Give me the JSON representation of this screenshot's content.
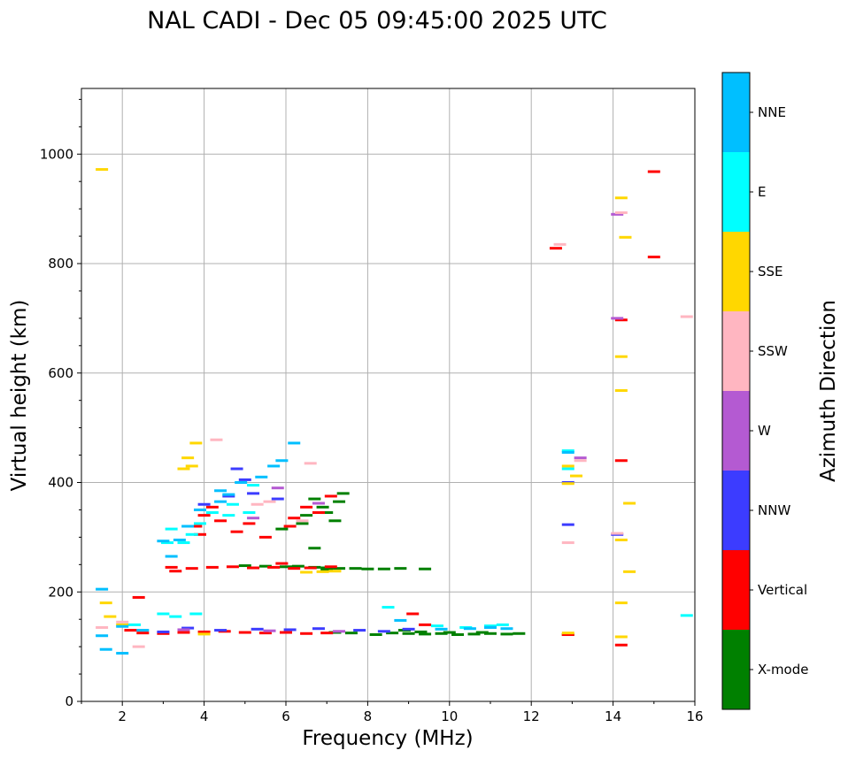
{
  "chart_data": {
    "type": "scatter",
    "title": "NAL CADI - Dec 05 09:45:00 2025 UTC",
    "xlabel": "Frequency (MHz)",
    "ylabel": "Virtual height (km)",
    "xlim": [
      1,
      16
    ],
    "ylim": [
      0,
      1120
    ],
    "xticks": [
      "2",
      "4",
      "6",
      "8",
      "10",
      "12",
      "14",
      "16"
    ],
    "yticks": [
      "0",
      "200",
      "400",
      "600",
      "800",
      "1000"
    ],
    "grid": true,
    "colorbar": {
      "title": "Azimuth Direction",
      "categories": [
        {
          "label": "X-mode",
          "color": "#008000"
        },
        {
          "label": "Vertical",
          "color": "#ff0000"
        },
        {
          "label": "NNW",
          "color": "#3c3cff"
        },
        {
          "label": "W",
          "color": "#b45ad2"
        },
        {
          "label": "SSW",
          "color": "#ffb6c1"
        },
        {
          "label": "SSE",
          "color": "#ffd700"
        },
        {
          "label": "E",
          "color": "#00ffff"
        },
        {
          "label": "NNE",
          "color": "#00bfff"
        }
      ]
    },
    "series": [
      {
        "name": "X-mode",
        "points": [
          [
            8.2,
            122
          ],
          [
            8.6,
            125
          ],
          [
            9.0,
            124
          ],
          [
            9.4,
            123
          ],
          [
            9.8,
            124
          ],
          [
            10.2,
            122
          ],
          [
            10.6,
            123
          ],
          [
            11.0,
            124
          ],
          [
            11.4,
            123
          ],
          [
            11.7,
            124
          ],
          [
            7.2,
            126
          ],
          [
            7.6,
            125
          ],
          [
            8.9,
            130
          ],
          [
            9.3,
            127
          ],
          [
            10.0,
            126
          ],
          [
            10.8,
            126
          ],
          [
            6.0,
            246
          ],
          [
            6.3,
            247
          ],
          [
            6.7,
            245
          ],
          [
            7.0,
            244
          ],
          [
            7.3,
            243
          ],
          [
            7.7,
            243
          ],
          [
            8.0,
            242
          ],
          [
            8.4,
            242
          ],
          [
            5.0,
            248
          ],
          [
            5.5,
            247
          ],
          [
            6.5,
            340
          ],
          [
            6.7,
            370
          ],
          [
            6.9,
            355
          ],
          [
            7.0,
            345
          ],
          [
            7.2,
            330
          ],
          [
            6.4,
            325
          ],
          [
            7.3,
            365
          ],
          [
            5.9,
            315
          ],
          [
            7.4,
            380
          ],
          [
            12.9,
            122
          ],
          [
            6.7,
            280
          ],
          [
            7.0,
            240
          ],
          [
            8.8,
            243
          ],
          [
            9.4,
            242
          ]
        ]
      },
      {
        "name": "Vertical",
        "points": [
          [
            2.5,
            125
          ],
          [
            3.0,
            124
          ],
          [
            3.5,
            126
          ],
          [
            4.0,
            127
          ],
          [
            4.5,
            128
          ],
          [
            5.0,
            126
          ],
          [
            5.5,
            125
          ],
          [
            6.0,
            126
          ],
          [
            6.5,
            124
          ],
          [
            7.0,
            125
          ],
          [
            2.2,
            130
          ],
          [
            2.4,
            190
          ],
          [
            3.2,
            245
          ],
          [
            3.7,
            243
          ],
          [
            4.2,
            245
          ],
          [
            4.7,
            246
          ],
          [
            5.2,
            244
          ],
          [
            5.7,
            245
          ],
          [
            6.2,
            243
          ],
          [
            6.6,
            244
          ],
          [
            7.1,
            246
          ],
          [
            3.8,
            320
          ],
          [
            4.0,
            340
          ],
          [
            4.2,
            355
          ],
          [
            4.4,
            330
          ],
          [
            3.9,
            305
          ],
          [
            5.1,
            325
          ],
          [
            5.5,
            300
          ],
          [
            6.2,
            335
          ],
          [
            6.5,
            355
          ],
          [
            6.8,
            345
          ],
          [
            7.1,
            375
          ],
          [
            6.1,
            320
          ],
          [
            4.8,
            310
          ],
          [
            9.1,
            160
          ],
          [
            9.4,
            140
          ],
          [
            12.6,
            828
          ],
          [
            12.9,
            122
          ],
          [
            14.2,
            440
          ],
          [
            14.2,
            103
          ],
          [
            15.0,
            968
          ],
          [
            15.0,
            812
          ],
          [
            14.2,
            697
          ],
          [
            3.3,
            238
          ],
          [
            5.9,
            252
          ]
        ]
      },
      {
        "name": "NNW",
        "points": [
          [
            3.0,
            127
          ],
          [
            4.4,
            130
          ],
          [
            5.3,
            132
          ],
          [
            6.1,
            131
          ],
          [
            6.8,
            133
          ],
          [
            7.8,
            130
          ],
          [
            8.4,
            128
          ],
          [
            4.0,
            360
          ],
          [
            4.6,
            375
          ],
          [
            5.2,
            380
          ],
          [
            5.8,
            370
          ],
          [
            5.0,
            405
          ],
          [
            12.9,
            323
          ],
          [
            12.9,
            400
          ],
          [
            14.1,
            305
          ],
          [
            4.8,
            425
          ],
          [
            3.6,
            134
          ],
          [
            9.0,
            132
          ]
        ]
      },
      {
        "name": "W",
        "points": [
          [
            3.5,
            131
          ],
          [
            5.6,
            129
          ],
          [
            7.3,
            128
          ],
          [
            5.2,
            335
          ],
          [
            6.8,
            362
          ],
          [
            14.1,
            890
          ],
          [
            14.1,
            700
          ],
          [
            13.2,
            445
          ],
          [
            5.8,
            390
          ]
        ]
      },
      {
        "name": "SSW",
        "points": [
          [
            1.5,
            135
          ],
          [
            2.0,
            145
          ],
          [
            2.4,
            100
          ],
          [
            4.3,
            478
          ],
          [
            5.6,
            365
          ],
          [
            6.4,
            330
          ],
          [
            6.6,
            435
          ],
          [
            12.7,
            835
          ],
          [
            12.9,
            290
          ],
          [
            14.2,
            893
          ],
          [
            15.8,
            703
          ],
          [
            13.2,
            440
          ],
          [
            14.1,
            307
          ],
          [
            5.3,
            360
          ]
        ]
      },
      {
        "name": "SSE",
        "points": [
          [
            1.5,
            972
          ],
          [
            1.6,
            180
          ],
          [
            1.7,
            155
          ],
          [
            3.5,
            425
          ],
          [
            3.6,
            445
          ],
          [
            3.7,
            430
          ],
          [
            3.8,
            472
          ],
          [
            6.5,
            236
          ],
          [
            6.9,
            237
          ],
          [
            7.2,
            238
          ],
          [
            12.9,
            398
          ],
          [
            12.9,
            430
          ],
          [
            13.1,
            412
          ],
          [
            14.2,
            920
          ],
          [
            14.3,
            848
          ],
          [
            14.2,
            630
          ],
          [
            14.2,
            568
          ],
          [
            14.2,
            295
          ],
          [
            14.4,
            362
          ],
          [
            14.4,
            237
          ],
          [
            14.2,
            180
          ],
          [
            14.2,
            118
          ],
          [
            12.9,
            125
          ],
          [
            2.0,
            140
          ],
          [
            4.0,
            123
          ]
        ]
      },
      {
        "name": "E",
        "points": [
          [
            3.0,
            160
          ],
          [
            3.3,
            155
          ],
          [
            3.8,
            160
          ],
          [
            3.5,
            290
          ],
          [
            3.7,
            305
          ],
          [
            3.9,
            325
          ],
          [
            4.2,
            345
          ],
          [
            3.2,
            315
          ],
          [
            4.7,
            360
          ],
          [
            5.1,
            345
          ],
          [
            2.3,
            140
          ],
          [
            8.5,
            172
          ],
          [
            9.7,
            138
          ],
          [
            10.4,
            135
          ],
          [
            11.0,
            138
          ],
          [
            11.3,
            140
          ],
          [
            12.9,
            458
          ],
          [
            12.9,
            425
          ],
          [
            15.8,
            157
          ],
          [
            5.2,
            395
          ],
          [
            4.6,
            340
          ],
          [
            3.1,
            290
          ]
        ]
      },
      {
        "name": "NNE",
        "points": [
          [
            1.5,
            205
          ],
          [
            1.5,
            120
          ],
          [
            2.0,
            137
          ],
          [
            2.5,
            130
          ],
          [
            3.0,
            293
          ],
          [
            3.4,
            295
          ],
          [
            3.6,
            320
          ],
          [
            3.9,
            350
          ],
          [
            4.4,
            365
          ],
          [
            4.6,
            378
          ],
          [
            4.9,
            400
          ],
          [
            5.4,
            410
          ],
          [
            5.9,
            440
          ],
          [
            6.2,
            472
          ],
          [
            9.8,
            132
          ],
          [
            10.5,
            133
          ],
          [
            11.0,
            135
          ],
          [
            11.4,
            133
          ],
          [
            8.8,
            148
          ],
          [
            12.9,
            455
          ],
          [
            1.6,
            95
          ],
          [
            2.0,
            88
          ],
          [
            4.4,
            385
          ],
          [
            5.7,
            430
          ],
          [
            3.2,
            265
          ]
        ]
      }
    ]
  }
}
